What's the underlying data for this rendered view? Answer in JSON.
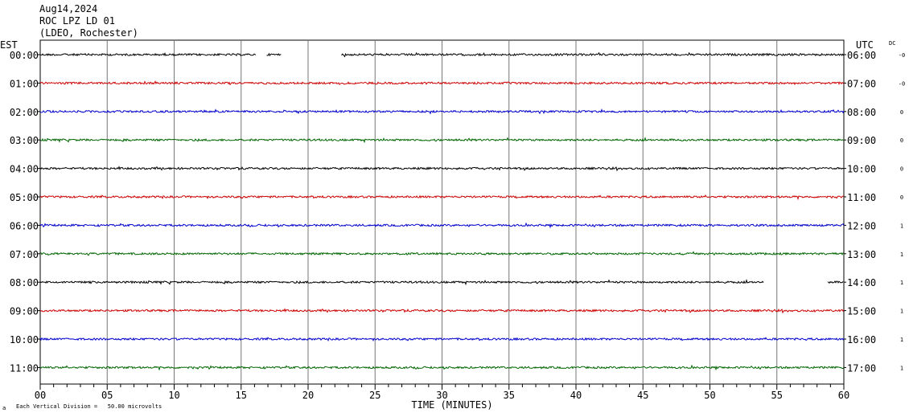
{
  "header": {
    "date": "Aug14,2024",
    "station": "ROC LPZ LD 01",
    "network": "(LDEO, Rochester)"
  },
  "left_axis_title": "EST",
  "right_axis_title": "UTC",
  "dc_title": "DC",
  "footer": {
    "scale_note": "Each Vertical Division =   50.00 microvolts",
    "corner_mark": "a"
  },
  "chart_data": {
    "type": "line",
    "title": "",
    "xlabel": "TIME (MINUTES)",
    "ylabel": "",
    "xlim": [
      0,
      60
    ],
    "x_ticks": [
      "00",
      "05",
      "10",
      "15",
      "20",
      "25",
      "30",
      "35",
      "40",
      "45",
      "50",
      "55",
      "60"
    ],
    "minor_tick_step_minutes": 1,
    "grid": "vertical lines every 5 minutes",
    "line_colors": [
      "#000000",
      "#cc0000",
      "#0000cc",
      "#006600"
    ],
    "rows": [
      {
        "est": "00:00",
        "utc": "06:00",
        "dc": "-0",
        "color": "#000000",
        "segments": [
          [
            0,
            16.1
          ],
          [
            16.9,
            18
          ],
          [
            22.5,
            60
          ]
        ]
      },
      {
        "est": "01:00",
        "utc": "07:00",
        "dc": "-0",
        "color": "#cc0000",
        "segments": [
          [
            0,
            60
          ]
        ]
      },
      {
        "est": "02:00",
        "utc": "08:00",
        "dc": "0",
        "color": "#0000cc",
        "segments": [
          [
            0,
            60
          ]
        ]
      },
      {
        "est": "03:00",
        "utc": "09:00",
        "dc": "0",
        "color": "#006600",
        "segments": [
          [
            0,
            60
          ]
        ]
      },
      {
        "est": "04:00",
        "utc": "10:00",
        "dc": "0",
        "color": "#000000",
        "segments": [
          [
            0,
            60
          ]
        ]
      },
      {
        "est": "05:00",
        "utc": "11:00",
        "dc": "0",
        "color": "#cc0000",
        "segments": [
          [
            0,
            60
          ]
        ]
      },
      {
        "est": "06:00",
        "utc": "12:00",
        "dc": "1",
        "color": "#0000cc",
        "segments": [
          [
            0,
            60
          ]
        ]
      },
      {
        "est": "07:00",
        "utc": "13:00",
        "dc": "1",
        "color": "#006600",
        "segments": [
          [
            0,
            60
          ]
        ]
      },
      {
        "est": "08:00",
        "utc": "14:00",
        "dc": "1",
        "color": "#000000",
        "segments": [
          [
            0,
            54
          ],
          [
            58.8,
            60
          ]
        ]
      },
      {
        "est": "09:00",
        "utc": "15:00",
        "dc": "1",
        "color": "#cc0000",
        "segments": [
          [
            0,
            60
          ]
        ]
      },
      {
        "est": "10:00",
        "utc": "16:00",
        "dc": "1",
        "color": "#0000cc",
        "segments": [
          [
            0,
            60
          ]
        ]
      },
      {
        "est": "11:00",
        "utc": "17:00",
        "dc": "1",
        "color": "#006600",
        "segments": [
          [
            0,
            60
          ]
        ]
      }
    ]
  }
}
